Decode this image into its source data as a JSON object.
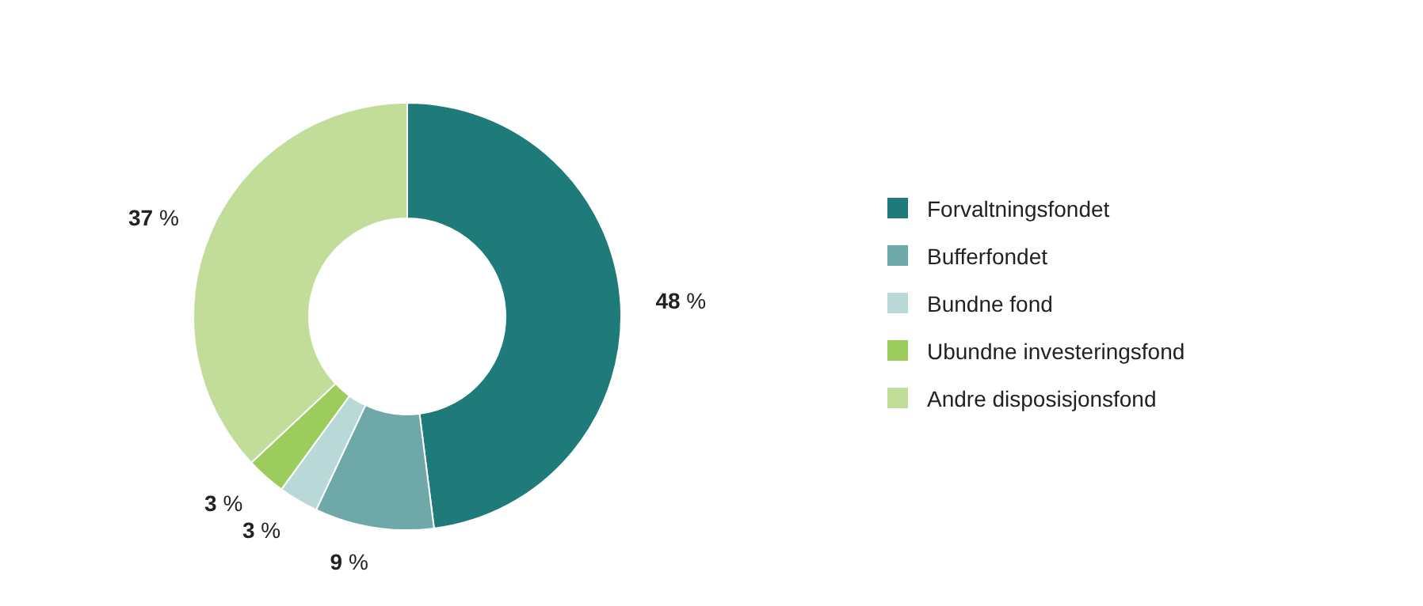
{
  "chart_data": {
    "type": "donut",
    "categories": [
      "Forvaltningsfondet",
      "Bufferfondet",
      "Bundne fond",
      "Ubundne investeringsfond",
      "Andre disposisjonsfond"
    ],
    "values": [
      48,
      9,
      3,
      3,
      37
    ],
    "colors": [
      "#1f7a7a",
      "#6fa8a8",
      "#b9d8d8",
      "#9ccc5c",
      "#c2dc9a"
    ],
    "value_labels": [
      "48 %",
      "9 %",
      "3 %",
      "3 %",
      "37 %"
    ],
    "legend": "right"
  }
}
